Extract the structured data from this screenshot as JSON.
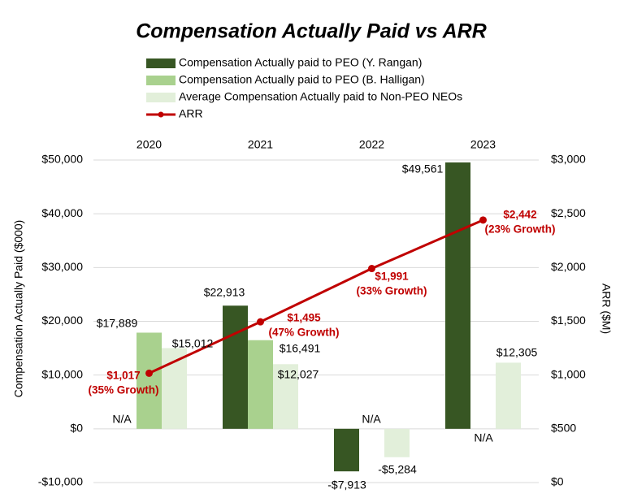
{
  "chart_data": {
    "type": "bar",
    "title": "Compensation Actually Paid vs ARR",
    "y_label": "Compensation Actually Paid ($000)",
    "y2_label": "ARR ($M)",
    "categories": [
      "2020",
      "2021",
      "2022",
      "2023"
    ],
    "series": [
      {
        "name": "Compensation Actually paid to PEO (Y. Rangan)",
        "color": "#375623",
        "values": [
          null,
          22913,
          -7913,
          49561
        ],
        "value_labels": [
          "N/A",
          "$22,913",
          "-$7,913",
          "$49,561"
        ]
      },
      {
        "name": "Compensation Actually paid to PEO (B. Halligan)",
        "color": "#a9d18e",
        "values": [
          17889,
          16491,
          null,
          null
        ],
        "value_labels": [
          "$17,889",
          "$16,491",
          "N/A",
          "N/A"
        ]
      },
      {
        "name": "Average Compensation Actually paid to Non-PEO NEOs",
        "color": "#e2efda",
        "values": [
          15012,
          12027,
          -5284,
          12305
        ],
        "value_labels": [
          "$15,012",
          "$12,027",
          "-$5,284",
          "$12,305"
        ]
      },
      {
        "name": "ARR",
        "type": "line",
        "axis": "y2",
        "color": "#c00000",
        "values": [
          1017,
          1495,
          1991,
          2442
        ],
        "value_labels": [
          "$1,017",
          "$1,495",
          "$1,991",
          "$2,442"
        ],
        "growth_labels": [
          "(35% Growth)",
          "(47% Growth)",
          "(33% Growth)",
          "(23% Growth)"
        ]
      }
    ],
    "ylim": [
      -10000,
      50000
    ],
    "yticks": [
      {
        "value": -10000,
        "label": "-$10,000"
      },
      {
        "value": 0,
        "label": "$0"
      },
      {
        "value": 10000,
        "label": "$10,000"
      },
      {
        "value": 20000,
        "label": "$20,000"
      },
      {
        "value": 30000,
        "label": "$30,000"
      },
      {
        "value": 40000,
        "label": "$40,000"
      },
      {
        "value": 50000,
        "label": "$50,000"
      }
    ],
    "y2lim": [
      0,
      3000
    ],
    "y2ticks": [
      {
        "value": 0,
        "label": "$0"
      },
      {
        "value": 500,
        "label": "$500"
      },
      {
        "value": 1000,
        "label": "$1,000"
      },
      {
        "value": 1500,
        "label": "$1,500"
      },
      {
        "value": 2000,
        "label": "$2,000"
      },
      {
        "value": 2500,
        "label": "$2,500"
      },
      {
        "value": 3000,
        "label": "$3,000"
      }
    ],
    "grid": true
  }
}
